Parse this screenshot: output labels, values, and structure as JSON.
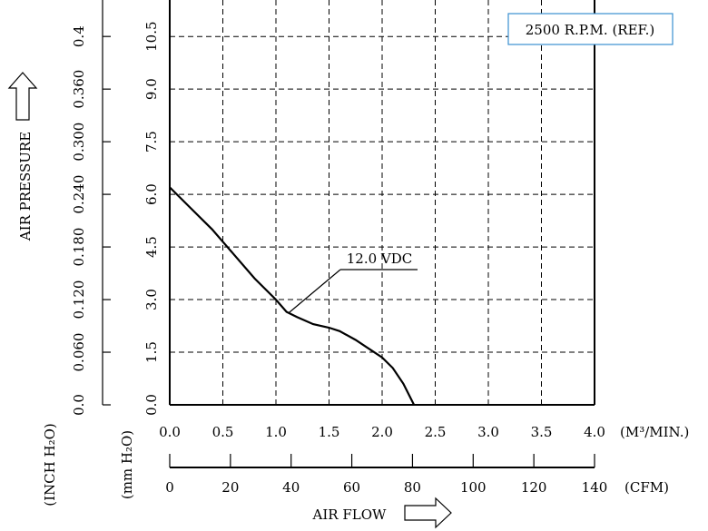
{
  "chart_data": {
    "type": "line",
    "title": "",
    "annotation_box": "2500 R.P.M. (REF.)",
    "xlabel": "AIR FLOW",
    "ylabel": "AIR PRESSURE",
    "x_axis_m3": {
      "unit": "(M³/MIN.)",
      "range": [
        0,
        4.0
      ],
      "ticks": [
        "0.0",
        "0.5",
        "1.0",
        "1.5",
        "2.0",
        "2.5",
        "3.0",
        "3.5",
        "4.0"
      ]
    },
    "x_axis_cfm": {
      "unit": "(CFM)",
      "range": [
        0,
        140
      ],
      "ticks": [
        "0",
        "20",
        "40",
        "60",
        "80",
        "100",
        "120",
        "140"
      ]
    },
    "y_axis_mm": {
      "unit": "(mm H₂O)",
      "range": [
        0,
        11.1
      ],
      "ticks": [
        "0.0",
        "1.5",
        "3.0",
        "4.5",
        "6.0",
        "7.5",
        "9.0",
        "10.5"
      ]
    },
    "y_axis_inch": {
      "unit": "(INCH H₂O)",
      "ticks": [
        "0.0",
        "0.060",
        "0.120",
        "0.180",
        "0.240",
        "0.300",
        "0.360",
        "0.4"
      ]
    },
    "grid": true,
    "series": [
      {
        "name": "12.0 VDC",
        "x": [
          0.0,
          0.2,
          0.4,
          0.6,
          0.8,
          1.0,
          1.1,
          1.2,
          1.35,
          1.5,
          1.6,
          1.75,
          1.9,
          2.0,
          2.1,
          2.2,
          2.3
        ],
        "y": [
          6.2,
          5.6,
          5.0,
          4.3,
          3.6,
          3.0,
          2.65,
          2.5,
          2.3,
          2.2,
          2.1,
          1.85,
          1.55,
          1.35,
          1.05,
          0.6,
          0.0
        ]
      }
    ]
  }
}
